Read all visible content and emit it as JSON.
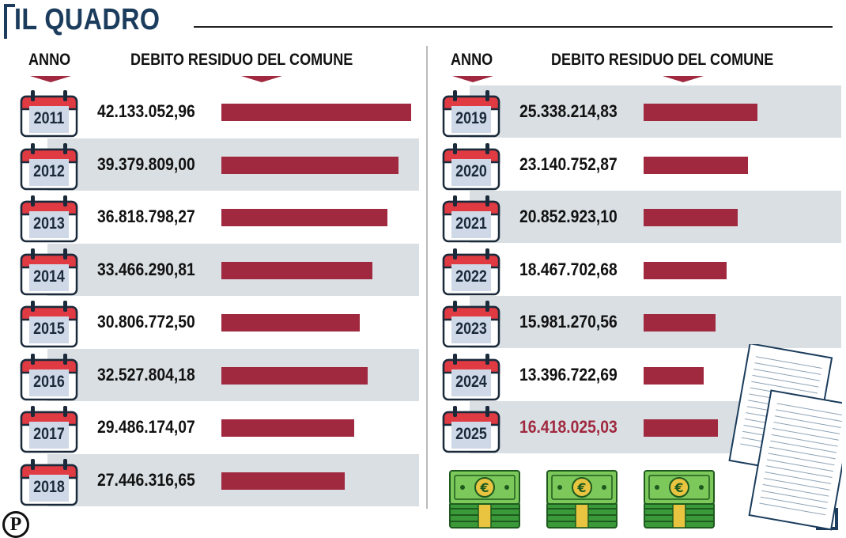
{
  "title": "IL QUADRO",
  "headers": {
    "year": "ANNO",
    "debt": "DEBITO RESIDUO DEL COMUNE"
  },
  "colors": {
    "bar": "#a0283f",
    "highlight": "#a0283f",
    "navy": "#1b3c5c",
    "row_shade": "#d9dfe3"
  },
  "chart_data": {
    "type": "bar",
    "title": "IL QUADRO",
    "xlabel": "ANNO",
    "ylabel": "DEBITO RESIDUO DEL COMUNE",
    "categories": [
      "2011",
      "2012",
      "2013",
      "2014",
      "2015",
      "2016",
      "2017",
      "2018",
      "2019",
      "2020",
      "2021",
      "2022",
      "2023",
      "2024",
      "2025"
    ],
    "labels": [
      "42.133.052,96",
      "39.379.809,00",
      "36.818.798,27",
      "33.466.290,81",
      "30.806.772,50",
      "32.527.804,18",
      "29.486.174,07",
      "27.446.316,65",
      "25.338.214,83",
      "23.140.752,87",
      "20.852.923,10",
      "18.467.702,68",
      "15.981.270,56",
      "13.396.722,69",
      "16.418.025,03"
    ],
    "values": [
      42133052.96,
      39379809.0,
      36818798.27,
      33466290.81,
      30806772.5,
      32527804.18,
      29486174.07,
      27446316.65,
      25338214.83,
      23140752.87,
      20852923.1,
      18467702.68,
      15981270.56,
      13396722.69,
      16418025.03
    ],
    "highlight_index": 14,
    "ylim": [
      0,
      42133052.96
    ]
  },
  "icons": {
    "logo": "P",
    "calendar": "calendar-icon",
    "money": "money-stack-icon",
    "documents": "documents-icon"
  }
}
